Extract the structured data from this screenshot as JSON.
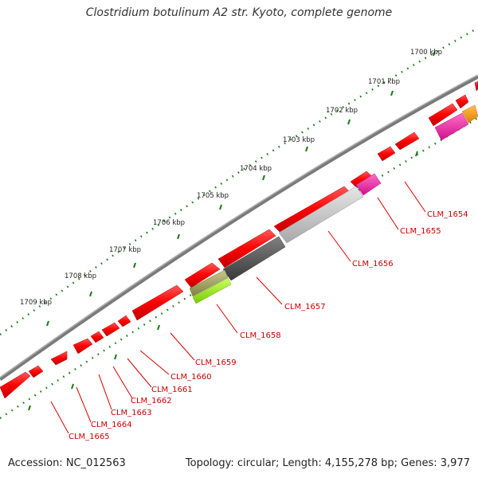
{
  "title": "Clostridium botulinum A2 str. Kyoto, complete genome",
  "accession": "Accession: NC_012563",
  "summary": "Topology: circular; Length: 4,155,278 bp; Genes: 3,977",
  "ruler_labels": [
    "1700 kbp",
    "1701 kbp",
    "1702 kbp",
    "1703 kbp",
    "1704 kbp",
    "1705 kbp",
    "1706 kbp",
    "1707 kbp",
    "1708 kbp",
    "1709 kbp"
  ],
  "gene_labels": [
    "CLM_1654",
    "CLM_1655",
    "CLM_1656",
    "CLM_1657",
    "CLM_1658",
    "CLM_1659",
    "CLM_1660",
    "CLM_1661",
    "CLM_1662",
    "CLM_1663",
    "CLM_1664",
    "CLM_1665"
  ],
  "colors": {
    "backbone": "#808080",
    "forward_gene": "#ff0000",
    "label": "#cc0000",
    "ruler": "#1a7a1a",
    "magenta": "#ff1493",
    "orange": "#ff9900",
    "light_gray": "#c8c8c8",
    "dark_gray": "#555555",
    "olive": "#a0a060",
    "lime": "#99ee22"
  }
}
